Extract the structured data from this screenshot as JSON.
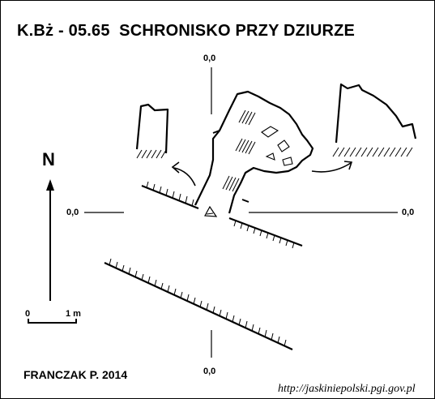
{
  "header": {
    "title": "K.Bż - 05.65  SCHRONISKO PRZY DZIURZE"
  },
  "axes": {
    "top_label": "0,0",
    "left_label": "0,0",
    "right_label": "0,0",
    "bottom_label": "0,0"
  },
  "compass": {
    "north_label": "N"
  },
  "scale": {
    "zero_label": "0",
    "length_label": "1 m"
  },
  "footer": {
    "author": "FRANCZAK P. 2014",
    "url": "http://jaskiniepolski.pgi.gov.pl"
  }
}
